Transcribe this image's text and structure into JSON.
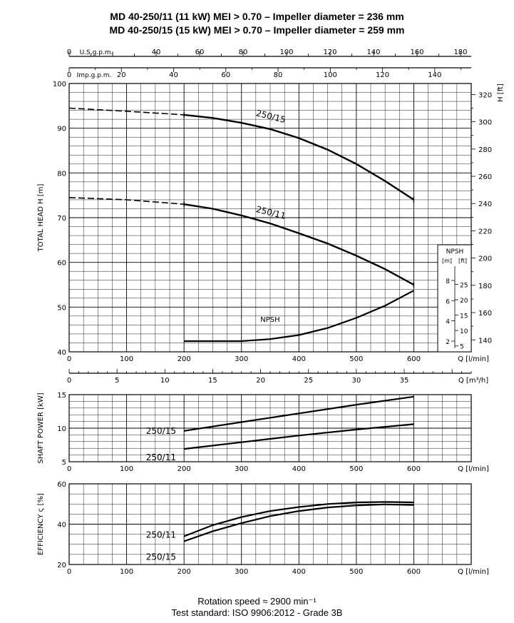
{
  "header": {
    "title_line1": "MD 40-250/11 (11 kW) MEI > 0.70 – Impeller diameter = 236 mm",
    "title_line2": "MD 40-250/15 (15 kW) MEI > 0.70 – Impeller diameter = 259 mm"
  },
  "footer": {
    "rotation": "Rotation speed ≈ 2900 min⁻¹",
    "standard": "Test standard: ISO 9906:2012 - Grade 3B"
  },
  "chart_data": [
    {
      "type": "line",
      "panel": "head",
      "ylabel": "TOTAL HEAD   H [m]",
      "y2label": "H [ft]",
      "xlabel": "Q [l/min]",
      "xlim": [
        0,
        700
      ],
      "ylim": [
        40,
        100
      ],
      "x_ticks": [
        0,
        100,
        200,
        300,
        400,
        500,
        600
      ],
      "y_ticks": [
        40,
        50,
        60,
        70,
        80,
        90,
        100
      ],
      "y2_ticks": [
        140,
        160,
        180,
        200,
        220,
        240,
        260,
        280,
        300,
        320
      ],
      "grid": true,
      "top_axes": {
        "us_gpm_label": "U.S.g.p.m.",
        "us_gpm_ticks": [
          0,
          40,
          60,
          80,
          100,
          120,
          140,
          160,
          180
        ],
        "imp_gpm_label": "Imp.g.p.m.",
        "imp_gpm_ticks": [
          0,
          20,
          40,
          60,
          80,
          100,
          120,
          140
        ]
      },
      "m3h_axis": {
        "label": "Q [m³/h]",
        "ticks": [
          0,
          5,
          10,
          15,
          20,
          25,
          30,
          35
        ]
      },
      "series": [
        {
          "name": "250/15",
          "x": [
            0,
            100,
            200,
            250,
            300,
            350,
            400,
            450,
            500,
            550,
            600
          ],
          "y": [
            94.5,
            93.8,
            93.0,
            92.3,
            91.2,
            89.8,
            87.8,
            85.2,
            82.0,
            78.2,
            74.0
          ]
        },
        {
          "name": "250/11",
          "x": [
            0,
            100,
            200,
            250,
            300,
            350,
            400,
            450,
            500,
            550,
            600
          ],
          "y": [
            74.5,
            74.0,
            73.0,
            72.0,
            70.5,
            68.7,
            66.5,
            64.2,
            61.5,
            58.5,
            55.0
          ]
        },
        {
          "name": "NPSH",
          "x": [
            200,
            250,
            300,
            350,
            400,
            450,
            500,
            550,
            600
          ],
          "y": [
            2.0,
            2.0,
            2.0,
            2.2,
            2.6,
            3.3,
            4.3,
            5.5,
            7.0
          ]
        }
      ],
      "npsh_inset": {
        "title": "NPSH",
        "m_label": "[m]",
        "ft_label": "[ft]",
        "m_ticks": [
          2,
          4,
          6,
          8
        ],
        "ft_ticks": [
          5,
          10,
          15,
          20,
          25
        ]
      }
    },
    {
      "type": "line",
      "panel": "power",
      "ylabel": "SHAFT POWER  [kW]",
      "xlabel": "Q [l/min]",
      "xlim": [
        0,
        700
      ],
      "ylim": [
        5,
        15
      ],
      "x_ticks": [
        0,
        100,
        200,
        300,
        400,
        500,
        600
      ],
      "y_ticks": [
        5,
        10,
        15
      ],
      "grid": true,
      "series": [
        {
          "name": "250/15",
          "x": [
            200,
            300,
            400,
            500,
            600
          ],
          "y": [
            9.6,
            10.9,
            12.2,
            13.5,
            14.7
          ]
        },
        {
          "name": "250/11",
          "x": [
            200,
            300,
            400,
            500,
            600
          ],
          "y": [
            6.9,
            7.9,
            8.9,
            9.8,
            10.6
          ]
        }
      ]
    },
    {
      "type": "line",
      "panel": "efficiency",
      "ylabel": "EFFICIENCY   ς [%]",
      "xlabel": "Q [l/min]",
      "xlim": [
        0,
        700
      ],
      "ylim": [
        20,
        60
      ],
      "x_ticks": [
        0,
        100,
        200,
        300,
        400,
        500,
        600
      ],
      "y_ticks": [
        20,
        40,
        60
      ],
      "grid": true,
      "series": [
        {
          "name": "250/11",
          "x": [
            200,
            250,
            300,
            350,
            400,
            450,
            500,
            550,
            600
          ],
          "y": [
            34.0,
            39.5,
            43.5,
            46.5,
            48.5,
            50.0,
            50.8,
            51.0,
            50.8
          ]
        },
        {
          "name": "250/15",
          "x": [
            200,
            250,
            300,
            350,
            400,
            450,
            500,
            550,
            600
          ],
          "y": [
            31.5,
            36.5,
            40.5,
            44.0,
            46.5,
            48.3,
            49.3,
            49.8,
            49.5
          ]
        }
      ]
    }
  ]
}
